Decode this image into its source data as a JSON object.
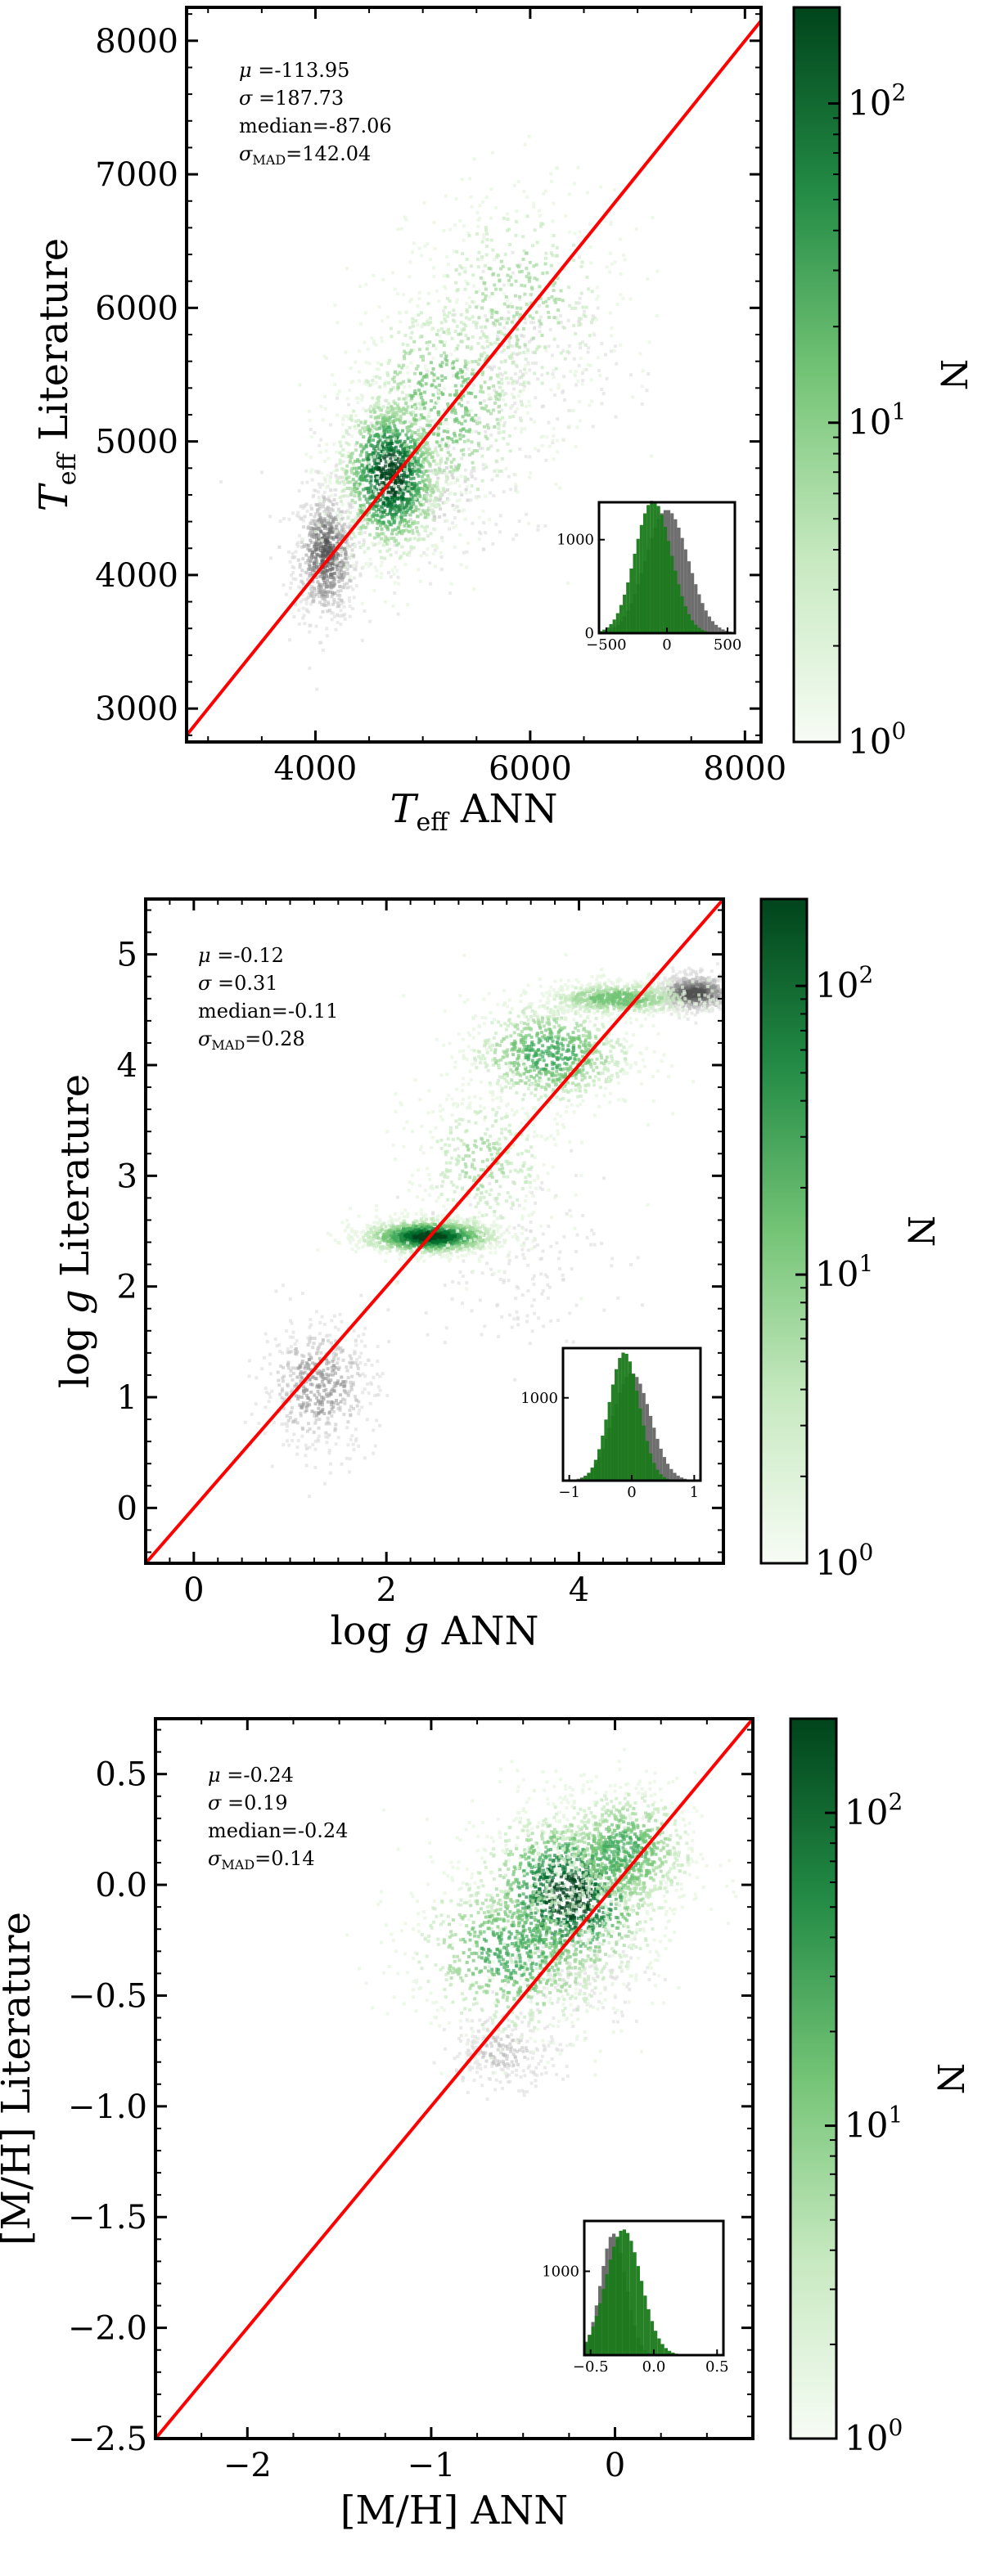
{
  "colors": {
    "identity_line": "#ff0000",
    "green_dark": "#00441b",
    "green_mid": "#41ab5d",
    "green_light": "#f7fcf5",
    "gray_density": "#555555",
    "inset_green": "#1a7a1a",
    "inset_gray": "#6e6e6e"
  },
  "colorbar": {
    "label": "N",
    "scale": "log",
    "ticks": [
      {
        "base": "10",
        "exp": "0",
        "value": 1
      },
      {
        "base": "10",
        "exp": "1",
        "value": 10
      },
      {
        "base": "10",
        "exp": "2",
        "value": 100
      }
    ]
  },
  "chart_data": [
    {
      "type": "heatmap",
      "id": "teff",
      "xlabel": {
        "main": "T",
        "sub": "eff",
        "tail": "ANN"
      },
      "ylabel": {
        "main": "T",
        "sub": "eff",
        "tail": "Literature"
      },
      "xlim": [
        2800,
        8150
      ],
      "ylim": [
        2750,
        8250
      ],
      "xticks": [
        4000,
        6000,
        8000
      ],
      "yticks": [
        3000,
        4000,
        5000,
        6000,
        7000,
        8000
      ],
      "x_minor_step": 500,
      "y_minor_step": 200,
      "identity_line": true,
      "stats": {
        "mu": "-113.95",
        "sigma": "187.73",
        "median": "-87.06",
        "sigma_mad": "142.04"
      },
      "green_density": [
        {
          "x": 4700,
          "y": 4750,
          "sx": 250,
          "sy": 320,
          "w": 1.0
        },
        {
          "x": 5200,
          "y": 5300,
          "sx": 450,
          "sy": 450,
          "w": 0.5
        },
        {
          "x": 5900,
          "y": 6050,
          "sx": 500,
          "sy": 450,
          "w": 0.35
        }
      ],
      "gray_density": [
        {
          "x": 4100,
          "y": 4150,
          "sx": 150,
          "sy": 250,
          "w": 0.9
        },
        {
          "x": 5000,
          "y": 4650,
          "sx": 500,
          "sy": 300,
          "w": 0.3
        },
        {
          "x": 6000,
          "y": 5600,
          "sx": 400,
          "sy": 300,
          "w": 0.2
        }
      ],
      "inset": {
        "xlim": [
          -560,
          560
        ],
        "ylim": [
          0,
          1400
        ],
        "xticks": [
          -500,
          0,
          500
        ],
        "yticks": [
          0,
          1000
        ],
        "gray": {
          "mu": 0,
          "sigma": 175,
          "peak": 1320
        },
        "green": {
          "mu": -114,
          "sigma": 150,
          "peak": 1420
        }
      }
    },
    {
      "type": "heatmap",
      "id": "logg",
      "xlabel": {
        "pre": "log",
        "var": "g",
        "tail": "ANN"
      },
      "ylabel": {
        "pre": "log",
        "var": "g",
        "tail": "Literature"
      },
      "xlim": [
        -0.5,
        5.5
      ],
      "ylim": [
        -0.5,
        5.5
      ],
      "xticks": [
        0,
        2,
        4
      ],
      "yticks": [
        0,
        1,
        2,
        3,
        4,
        5
      ],
      "x_minor_step": 0.25,
      "y_minor_step": 0.2,
      "identity_line": true,
      "stats": {
        "mu": "-0.12",
        "sigma": "0.31",
        "median": "-0.11",
        "sigma_mad": "0.28"
      },
      "green_density": [
        {
          "x": 2.45,
          "y": 2.45,
          "sx": 0.35,
          "sy": 0.08,
          "w": 1.0
        },
        {
          "x": 3.7,
          "y": 4.1,
          "sx": 0.45,
          "sy": 0.25,
          "w": 0.6
        },
        {
          "x": 4.4,
          "y": 4.6,
          "sx": 0.4,
          "sy": 0.08,
          "w": 0.5
        },
        {
          "x": 3.0,
          "y": 3.1,
          "sx": 0.4,
          "sy": 0.4,
          "w": 0.3
        }
      ],
      "gray_density": [
        {
          "x": 1.3,
          "y": 1.1,
          "sx": 0.3,
          "sy": 0.3,
          "w": 0.6
        },
        {
          "x": 5.2,
          "y": 4.65,
          "sx": 0.2,
          "sy": 0.08,
          "w": 1.0
        },
        {
          "x": 3.3,
          "y": 2.3,
          "sx": 0.5,
          "sy": 0.4,
          "w": 0.2
        }
      ],
      "inset": {
        "xlim": [
          -1.1,
          1.1
        ],
        "ylim": [
          0,
          1600
        ],
        "xticks": [
          -1,
          0,
          1
        ],
        "yticks": [
          1000
        ],
        "gray": {
          "mu": 0.0,
          "sigma": 0.3,
          "peak": 1300
        },
        "green": {
          "mu": -0.12,
          "sigma": 0.24,
          "peak": 1550
        }
      }
    },
    {
      "type": "heatmap",
      "id": "mh",
      "xlabel": {
        "main": "[M/H]",
        "tail": "ANN"
      },
      "ylabel": {
        "main": "[M/H]",
        "tail": "Literature"
      },
      "xlim": [
        -2.5,
        0.75
      ],
      "ylim": [
        -2.5,
        0.75
      ],
      "xticks": [
        -2,
        -1,
        0
      ],
      "yticks": [
        -2.5,
        -2.0,
        -1.5,
        -1.0,
        -0.5,
        0.0,
        0.5
      ],
      "ytick_labels": [
        "−2.5",
        "−2.0",
        "−1.5",
        "−1.0",
        "−0.5",
        "0.0",
        "0.5"
      ],
      "xtick_labels": [
        "−2",
        "−1",
        "0"
      ],
      "x_minor_step": 0.25,
      "y_minor_step": 0.1,
      "identity_line": true,
      "stats": {
        "mu": "-0.24",
        "sigma": "0.19",
        "median": "-0.24",
        "sigma_mad": "0.14"
      },
      "green_density": [
        {
          "x": -0.25,
          "y": -0.05,
          "sx": 0.25,
          "sy": 0.2,
          "w": 1.0
        },
        {
          "x": -0.55,
          "y": -0.3,
          "sx": 0.3,
          "sy": 0.2,
          "w": 0.6
        },
        {
          "x": 0.05,
          "y": 0.15,
          "sx": 0.2,
          "sy": 0.15,
          "w": 0.6
        }
      ],
      "gray_density": [
        {
          "x": -0.6,
          "y": -0.75,
          "sx": 0.15,
          "sy": 0.08,
          "w": 0.3
        },
        {
          "x": -0.2,
          "y": -0.4,
          "sx": 0.2,
          "sy": 0.1,
          "w": 0.15
        }
      ],
      "inset": {
        "xlim": [
          -0.55,
          0.55
        ],
        "ylim": [
          0,
          1600
        ],
        "xticks": [
          -0.5,
          0.0,
          0.5
        ],
        "xtick_labels": [
          "−0.5",
          "0.0",
          "0.5"
        ],
        "yticks": [
          1000
        ],
        "gray": {
          "mu": -0.32,
          "sigma": 0.1,
          "peak": 1450
        },
        "green": {
          "mu": -0.24,
          "sigma": 0.14,
          "peak": 1500
        }
      }
    }
  ]
}
